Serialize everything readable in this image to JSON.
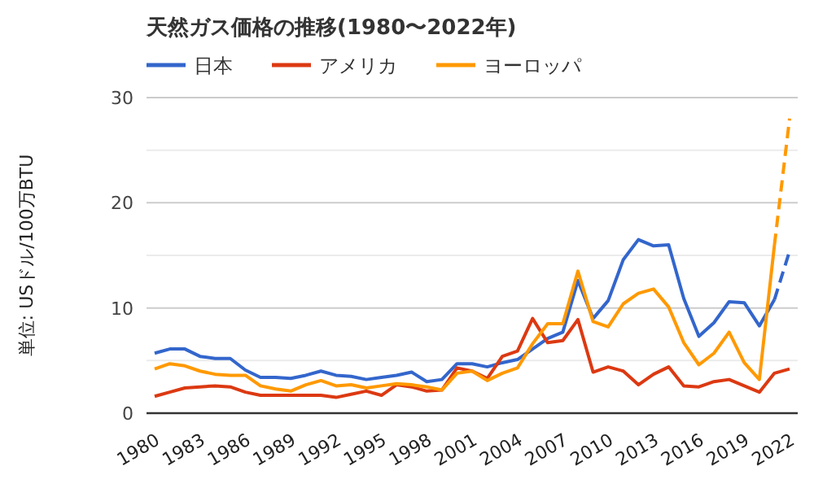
{
  "chart_data": {
    "type": "line",
    "title": "天然ガス価格の推移(1980〜2022年)",
    "ylabel": "単位: USドル/100万BTU",
    "categories": [
      "1980",
      null,
      null,
      "1983",
      null,
      null,
      "1986",
      null,
      null,
      "1989",
      null,
      null,
      "1992",
      null,
      null,
      "1995",
      null,
      null,
      "1998",
      null,
      null,
      "2001",
      null,
      null,
      "2004",
      null,
      null,
      "2007",
      null,
      null,
      "2010",
      null,
      null,
      "2013",
      null,
      null,
      "2016",
      null,
      null,
      "2019",
      null,
      null,
      "2022"
    ],
    "series": [
      {
        "name": "日本",
        "color": "#3366cc",
        "values": [
          5.7,
          6.1,
          6.1,
          5.4,
          5.2,
          5.2,
          4.1,
          3.4,
          3.4,
          3.3,
          3.6,
          4.0,
          3.6,
          3.5,
          3.2,
          3.4,
          3.6,
          3.9,
          3.0,
          3.2,
          4.7,
          4.7,
          4.4,
          4.8,
          5.1,
          6.1,
          7.1,
          7.7,
          12.6,
          9.0,
          10.7,
          14.6,
          16.5,
          15.9,
          16.0,
          10.9,
          7.3,
          8.6,
          10.6,
          10.5,
          8.3,
          10.8,
          null
        ]
      },
      {
        "name": "アメリカ",
        "color": "#dc3912",
        "values": [
          1.6,
          2.0,
          2.4,
          2.5,
          2.6,
          2.5,
          2.0,
          1.7,
          1.7,
          1.7,
          1.7,
          1.7,
          1.5,
          1.8,
          2.1,
          1.7,
          2.7,
          2.5,
          2.1,
          2.2,
          4.3,
          4.0,
          3.3,
          5.4,
          5.9,
          9.0,
          6.7,
          6.9,
          8.9,
          3.9,
          4.4,
          4.0,
          2.7,
          3.7,
          4.4,
          2.6,
          2.5,
          3.0,
          3.2,
          2.6,
          2.0,
          3.8,
          4.2
        ]
      },
      {
        "name": "ヨーロッパ",
        "color": "#ff9900",
        "values": [
          4.2,
          4.7,
          4.5,
          4.0,
          3.7,
          3.6,
          3.6,
          2.6,
          2.3,
          2.1,
          2.7,
          3.1,
          2.6,
          2.7,
          2.4,
          2.6,
          2.8,
          2.7,
          2.5,
          2.2,
          3.8,
          4.0,
          3.1,
          3.8,
          4.3,
          6.6,
          8.5,
          8.5,
          13.5,
          8.7,
          8.2,
          10.4,
          11.4,
          11.8,
          10.1,
          6.7,
          4.6,
          5.7,
          7.7,
          4.8,
          3.2,
          16.0,
          null
        ]
      },
      {
        "color": "#3366cc",
        "line_style": "dashed",
        "values": [
          null,
          null,
          null,
          null,
          null,
          null,
          null,
          null,
          null,
          null,
          null,
          null,
          null,
          null,
          null,
          null,
          null,
          null,
          null,
          null,
          null,
          null,
          null,
          null,
          null,
          null,
          null,
          null,
          null,
          null,
          null,
          null,
          null,
          null,
          null,
          null,
          null,
          null,
          null,
          null,
          null,
          10.8,
          15.4
        ]
      },
      {
        "color": "#ff9900",
        "line_style": "dashed",
        "values": [
          null,
          null,
          null,
          null,
          null,
          null,
          null,
          null,
          null,
          null,
          null,
          null,
          null,
          null,
          null,
          null,
          null,
          null,
          null,
          null,
          null,
          null,
          null,
          null,
          null,
          null,
          null,
          null,
          null,
          null,
          null,
          null,
          null,
          null,
          null,
          null,
          null,
          null,
          null,
          null,
          null,
          16.0,
          28.0
        ]
      }
    ],
    "ylim": [
      0,
      30
    ],
    "yticks": [
      0,
      {
        "value": 5,
        "label": null
      },
      10,
      {
        "value": 15,
        "label": null
      },
      20,
      {
        "value": 25,
        "label": null
      },
      30
    ],
    "grid": "y",
    "legend": "top left",
    "line_style": "solid",
    "marker": "none"
  }
}
